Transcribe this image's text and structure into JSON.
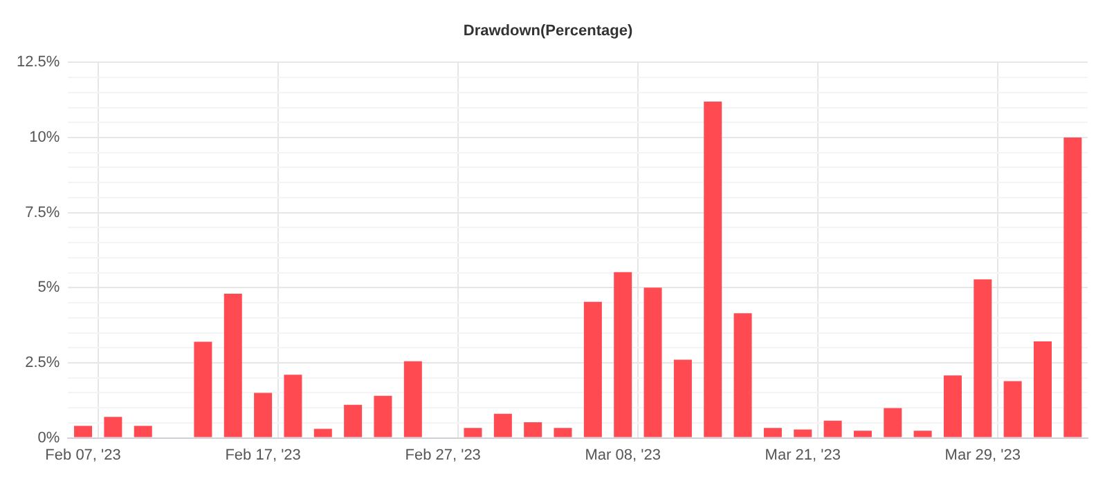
{
  "chart_data": {
    "type": "bar",
    "title": "Drawdown(Percentage)",
    "categories": [
      "Feb 07, '23",
      null,
      null,
      null,
      null,
      null,
      "Feb 17, '23",
      null,
      null,
      null,
      null,
      null,
      "Feb 27, '23",
      null,
      null,
      null,
      null,
      null,
      "Mar 08, '23",
      null,
      null,
      null,
      null,
      null,
      "Mar 21, '23",
      null,
      null,
      null,
      null,
      null,
      "Mar 29, '23",
      null,
      null,
      null
    ],
    "values": [
      0.4,
      0.7,
      0.4,
      0,
      3.2,
      4.8,
      1.5,
      2.1,
      0.3,
      1.1,
      1.4,
      2.55,
      0,
      0.33,
      0.8,
      0.52,
      0.33,
      4.53,
      5.52,
      5.0,
      2.6,
      11.2,
      4.15,
      0.33,
      0.28,
      0.57,
      0.24,
      0.99,
      0.24,
      2.08,
      5.28,
      1.89,
      3.21,
      10.0
    ],
    "color": "#ff4a52",
    "ylim": [
      0,
      12.5
    ],
    "yticks": [
      {
        "value": 0,
        "label": "0%"
      },
      {
        "value": 0.5,
        "label": null
      },
      {
        "value": 1,
        "label": null
      },
      {
        "value": 1.5,
        "label": null
      },
      {
        "value": 2,
        "label": null
      },
      {
        "value": 2.5,
        "label": "2.5%"
      },
      {
        "value": 3,
        "label": null
      },
      {
        "value": 3.5,
        "label": null
      },
      {
        "value": 4,
        "label": null
      },
      {
        "value": 4.5,
        "label": null
      },
      {
        "value": 5,
        "label": "5%"
      },
      {
        "value": 5.5,
        "label": null
      },
      {
        "value": 6,
        "label": null
      },
      {
        "value": 6.5,
        "label": null
      },
      {
        "value": 7,
        "label": null
      },
      {
        "value": 7.5,
        "label": "7.5%"
      },
      {
        "value": 8,
        "label": null
      },
      {
        "value": 8.5,
        "label": null
      },
      {
        "value": 9,
        "label": null
      },
      {
        "value": 9.5,
        "label": null
      },
      {
        "value": 10,
        "label": "10%"
      },
      {
        "value": 10.5,
        "label": null
      },
      {
        "value": 11,
        "label": null
      },
      {
        "value": 11.5,
        "label": null
      },
      {
        "value": 12,
        "label": null
      },
      {
        "value": 12.5,
        "label": "12.5%"
      }
    ],
    "grid": true
  }
}
